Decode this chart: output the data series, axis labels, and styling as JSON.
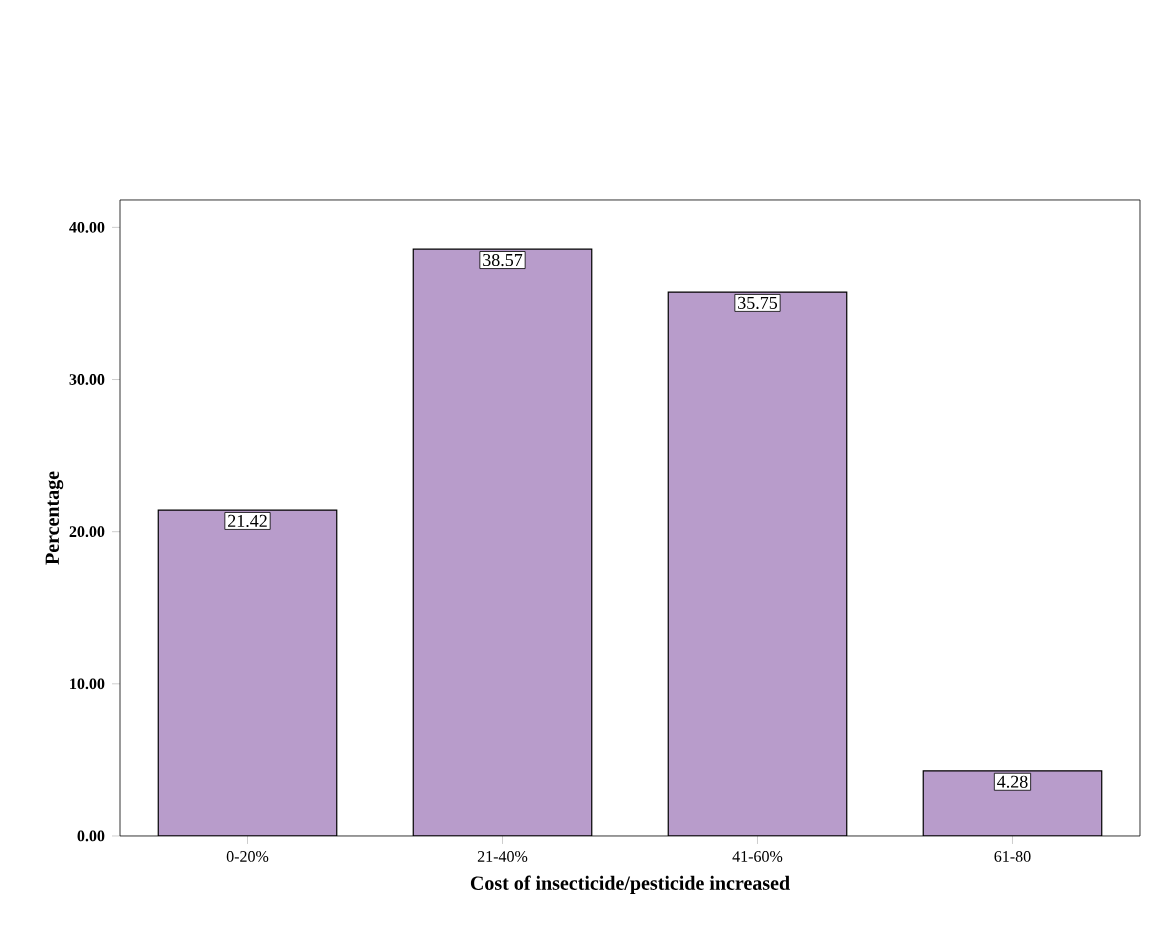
{
  "chart_data": {
    "type": "bar",
    "xlabel": "Cost of insecticide/pesticide increased",
    "ylabel": "Percentage",
    "categories": [
      "0-20%",
      "21-40%",
      "41-60%",
      "61-80"
    ],
    "values": [
      21.42,
      38.57,
      35.75,
      4.28
    ],
    "color": "#b89ccb",
    "ylim": [
      0,
      41.8
    ],
    "yticks": [
      {
        "value": 0,
        "label": "0.00"
      },
      {
        "value": 10,
        "label": "10.00"
      },
      {
        "value": 20,
        "label": "20.00"
      },
      {
        "value": 30,
        "label": "30.00"
      },
      {
        "value": 40,
        "label": "40.00"
      }
    ],
    "data_labels": true
  }
}
